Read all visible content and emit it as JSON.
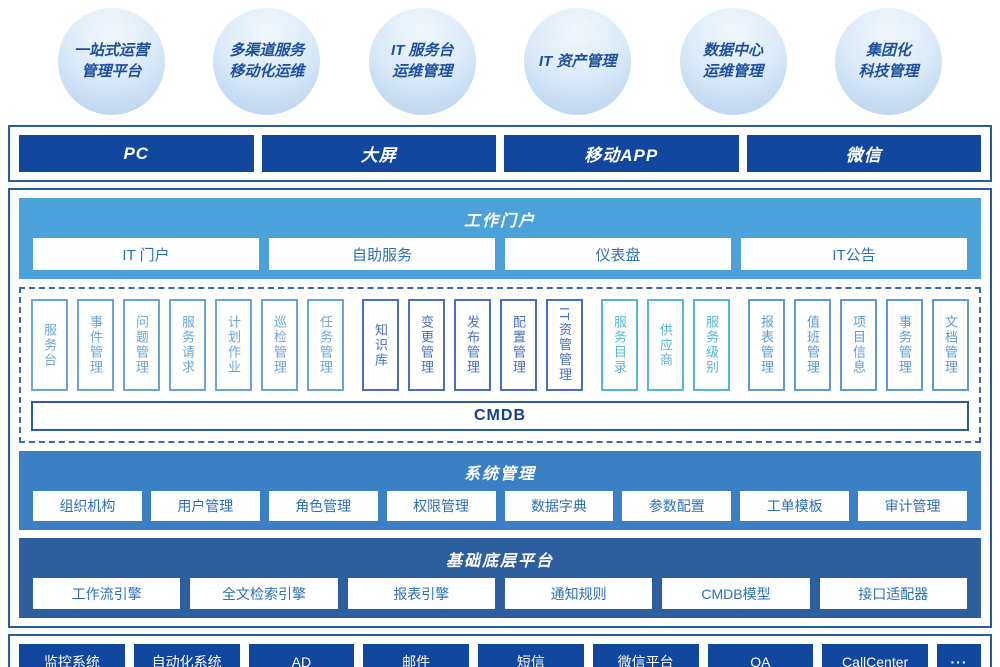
{
  "colors": {
    "navy_bar": "#11479e",
    "portal_band": "#4ba1da",
    "system_band": "#3b7fc4",
    "base_band": "#2d5e9e",
    "container_border": "#2b5a9f",
    "module_group_itsm": "#6ba4d9",
    "module_group_change": "#4a6fbb",
    "module_group_catalog": "#56b7d3",
    "module_group_report": "#5b9bd5",
    "item_text": "#2d6fb8",
    "bubble_text": "#1d4f9d"
  },
  "bubbles": [
    {
      "label": "一站式运营\n管理平台"
    },
    {
      "label": "多渠道服务\n移动化运维"
    },
    {
      "label": "IT 服务台\n运维管理"
    },
    {
      "label": "IT 资产管理"
    },
    {
      "label": "数据中心\n运维管理"
    },
    {
      "label": "集团化\n科技管理"
    }
  ],
  "channels": {
    "items": [
      "PC",
      "大屏",
      "移动APP",
      "微信"
    ]
  },
  "portal": {
    "title": "工作门户",
    "items": [
      "IT 门户",
      "自助服务",
      "仪表盘",
      "IT公告"
    ]
  },
  "modules": {
    "cmdb_label": "CMDB",
    "groups": [
      {
        "name": "itsm-core",
        "items": [
          "服务台",
          "事件管理",
          "问题管理",
          "服务请求",
          "计划作业",
          "巡检管理",
          "任务管理"
        ]
      },
      {
        "name": "knowledge-change",
        "items": [
          "知识库",
          "变更管理",
          "发布管理",
          "配置管理",
          "IT资管管理"
        ]
      },
      {
        "name": "service-catalog",
        "items": [
          "服务目录",
          "供应商",
          "服务级别"
        ]
      },
      {
        "name": "reporting-docs",
        "items": [
          "报表管理",
          "值班管理",
          "项目信息",
          "事务管理",
          "文档管理"
        ]
      }
    ]
  },
  "system": {
    "title": "系统管理",
    "items": [
      "组织机构",
      "用户管理",
      "角色管理",
      "权限管理",
      "数据字典",
      "参数配置",
      "工单模板",
      "审计管理"
    ]
  },
  "base": {
    "title": "基础底层平台",
    "items": [
      "工作流引擎",
      "全文检索引擎",
      "报表引擎",
      "通知规则",
      "CMDB模型",
      "接口适配器"
    ]
  },
  "integrations": {
    "items": [
      "监控系统",
      "自动化系统",
      "AD",
      "邮件",
      "短信",
      "微信平台",
      "OA",
      "CallCenter",
      "···"
    ]
  }
}
